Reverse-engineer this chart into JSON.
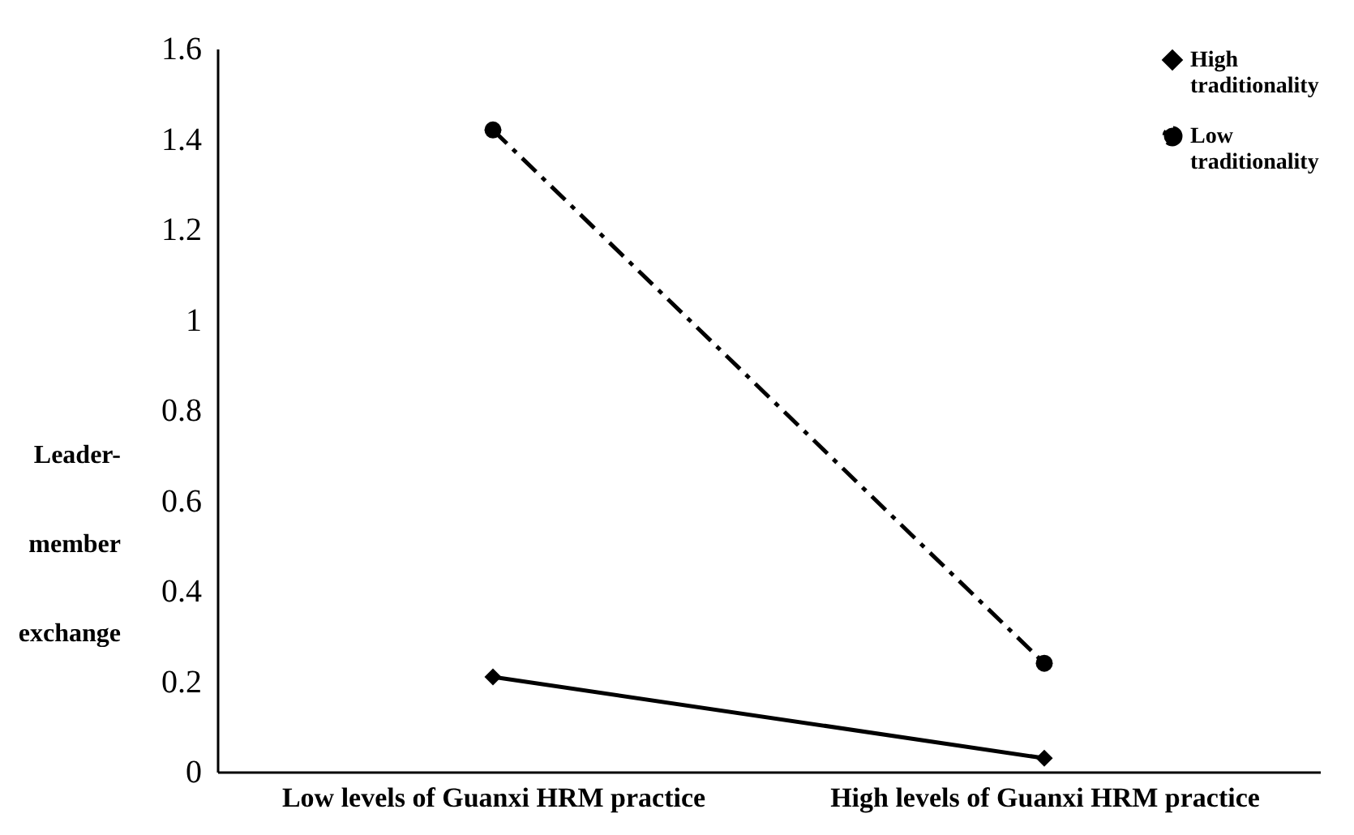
{
  "chart_data": {
    "type": "line",
    "ylabel": "Leader-member exchange",
    "categories": [
      "Low levels of Guanxi HRM practice",
      "High levels of Guanxi HRM practice"
    ],
    "series": [
      {
        "name": "High traditionality",
        "color": "#000000",
        "values": [
          0.21,
          0.03
        ],
        "marker": "diamond",
        "line_style": "solid"
      },
      {
        "name": "Low traditionality",
        "color": "#000000",
        "values": [
          1.42,
          0.24
        ],
        "marker": "circle",
        "line_style": "dashed"
      }
    ],
    "ylim": [
      0,
      1.6
    ],
    "yticks": [
      0,
      0.2,
      0.4,
      0.6,
      0.8,
      1,
      1.2,
      1.4,
      1.6
    ],
    "grid": false,
    "legend": "top right"
  }
}
